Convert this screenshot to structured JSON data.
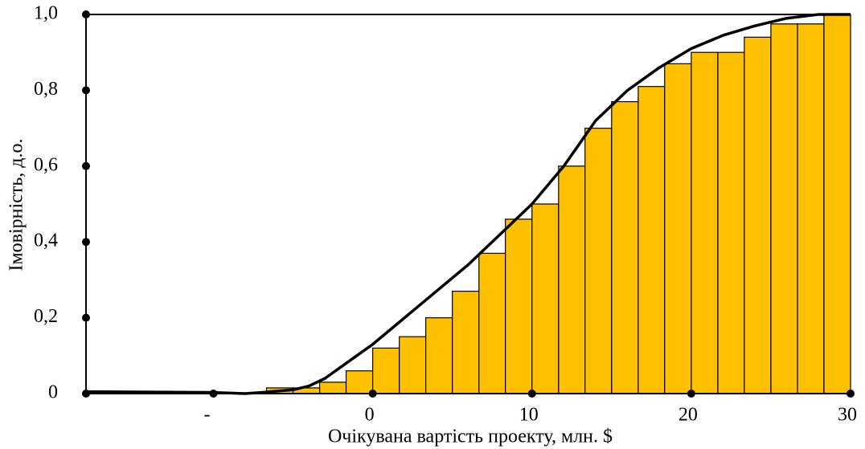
{
  "chart_data": {
    "type": "histogram",
    "bins": [
      -6.67,
      -5,
      -3.33,
      -1.67,
      0,
      1.67,
      3.33,
      5,
      6.67,
      8.33,
      10,
      11.67,
      13.33,
      15,
      16.67,
      18.33,
      20,
      21.67,
      23.33,
      25,
      26.67,
      28.33,
      30
    ],
    "values": [
      0.015,
      0.015,
      0.03,
      0.06,
      0.12,
      0.15,
      0.2,
      0.27,
      0.37,
      0.46,
      0.5,
      0.6,
      0.7,
      0.77,
      0.81,
      0.87,
      0.9,
      0.9,
      0.94,
      0.975,
      0.975,
      1.0
    ],
    "color": "#ffc000",
    "line": {
      "color": "#000000",
      "x": [
        -18,
        -10,
        -8,
        -7,
        -5,
        -4,
        -3,
        -2,
        -1,
        0,
        2,
        4,
        6,
        8,
        10,
        12,
        13,
        14,
        16,
        18,
        20,
        22,
        24,
        26,
        28,
        30
      ],
      "values": [
        0.005,
        0.003,
        0.0,
        0.003,
        0.01,
        0.02,
        0.04,
        0.07,
        0.1,
        0.13,
        0.2,
        0.27,
        0.34,
        0.42,
        0.5,
        0.6,
        0.66,
        0.72,
        0.8,
        0.86,
        0.91,
        0.945,
        0.97,
        0.99,
        1.0,
        1.0
      ]
    },
    "xlabel": "Очікувана вартість проекту, млн. $",
    "ylabel": "Імовірність, д.о.",
    "xlim": [
      -18,
      30
    ],
    "xticks": [
      {
        "value": -10,
        "label": "-"
      },
      0,
      10,
      20,
      30
    ],
    "ylim": [
      0,
      1
    ],
    "yticks": [
      0,
      {
        "value": 0.2,
        "label": "0,2"
      },
      {
        "value": 0.4,
        "label": "0,4"
      },
      {
        "value": 0.6,
        "label": "0,6"
      },
      {
        "value": 0.8,
        "label": "0,8"
      },
      {
        "value": 1.0,
        "label": "1,0"
      }
    ]
  }
}
